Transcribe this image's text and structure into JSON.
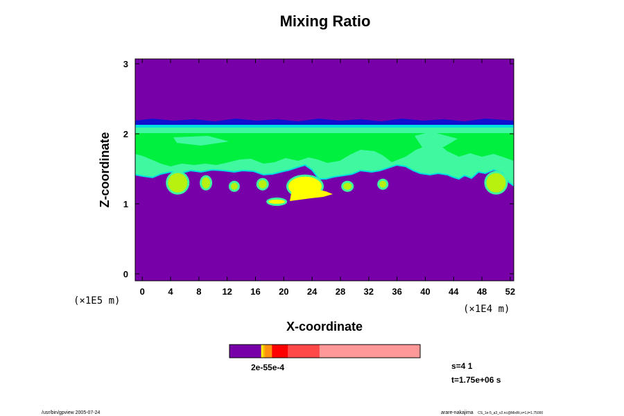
{
  "chart_data": {
    "type": "heatmap",
    "title": "Mixing Ratio",
    "xlabel": "X-coordinate",
    "ylabel": "Z-coordinate",
    "x_unit": "(×1E4 m)",
    "y_unit": "(×1E5 m)",
    "xlim": [
      -1,
      52.5
    ],
    "ylim": [
      -0.1,
      3.07
    ],
    "x_ticks": [
      "0",
      "4",
      "8",
      "12",
      "16",
      "20",
      "24",
      "28",
      "32",
      "36",
      "40",
      "44",
      "48",
      "52"
    ],
    "y_ticks": [
      "0",
      "1",
      "2",
      "3"
    ],
    "grid": false,
    "colorbar_labels": "2e-55e-4",
    "colors": {
      "background": "#7800a8",
      "level_dark_blue": "#1010d0",
      "level_cyan": "#00e0e0",
      "level_light_green": "#40f8a0",
      "level_green": "#00f040",
      "level_yellow_green": "#b8f010",
      "level_yellow": "#ffff00",
      "level_orange": "#ff9010",
      "level_red": "#ff0000",
      "level_light_red": "#ff4848",
      "level_pink": "#ff9898"
    },
    "colorbar_levels": [
      {
        "color": "#7800a8",
        "share": 0.166
      },
      {
        "color": "#ffff00",
        "share": 0.007
      },
      {
        "color": "#ffd000",
        "share": 0.007
      },
      {
        "color": "#ffb000",
        "share": 0.007
      },
      {
        "color": "#ff9010",
        "share": 0.036
      },
      {
        "color": "#ff0000",
        "share": 0.083
      },
      {
        "color": "#ff4848",
        "share": 0.166
      },
      {
        "color": "#ff9898",
        "share": 0.528
      }
    ],
    "features": [
      {
        "kind": "layer",
        "x_range": [
          -1,
          52.5
        ],
        "z_range": [
          2.14,
          2.18
        ],
        "color": "#1010d0"
      },
      {
        "kind": "layer",
        "x_range": [
          -1,
          52.5
        ],
        "z_range": [
          2.1,
          2.14
        ],
        "color": "#00e0e0"
      },
      {
        "kind": "layer",
        "x_range": [
          -1,
          52.5
        ],
        "z_range": [
          1.5,
          2.1
        ],
        "color": "#40f8a0"
      },
      {
        "kind": "layer",
        "x_range": [
          -1,
          52.5
        ],
        "z_range": [
          1.65,
          2.05
        ],
        "color": "#00f040"
      },
      {
        "kind": "blob",
        "x": 5,
        "z": 1.3,
        "color": "#b8f010"
      },
      {
        "kind": "blob",
        "x": 9,
        "z": 1.3,
        "color": "#b8f010"
      },
      {
        "kind": "blob",
        "x": 13,
        "z": 1.25,
        "color": "#b8f010"
      },
      {
        "kind": "blob",
        "x": 17,
        "z": 1.28,
        "color": "#b8f010"
      },
      {
        "kind": "blob",
        "x": 19,
        "z": 1.03,
        "color": "#ffff00"
      },
      {
        "kind": "blob",
        "x": 23,
        "z": 1.25,
        "color": "#ffff00"
      },
      {
        "kind": "blob",
        "x": 29,
        "z": 1.25,
        "color": "#b8f010"
      },
      {
        "kind": "blob",
        "x": 34,
        "z": 1.28,
        "color": "#b8f010"
      },
      {
        "kind": "blob",
        "x": 50,
        "z": 1.3,
        "color": "#b8f010"
      }
    ]
  },
  "info": {
    "s_label": "s=4 1",
    "t_label": "t=1.75e+06 s"
  },
  "footer": {
    "left": "/usr/bin/gpview 2005-07-24",
    "right_main": "arare-nakajima",
    "right_small": "CS_1e-5_a3_v2.nc@MixRt,s=1,t=1.75000"
  }
}
